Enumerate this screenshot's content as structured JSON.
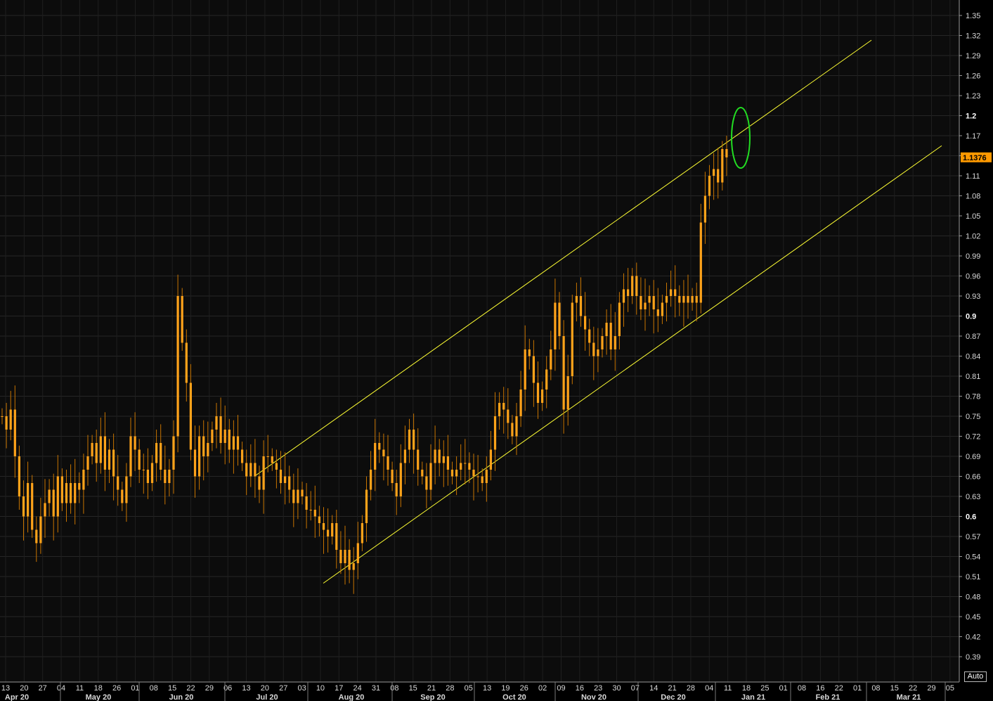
{
  "chart_data": {
    "type": "candlestick",
    "y_ticks": [
      "1.35",
      "1.32",
      "1.29",
      "1.26",
      "1.23",
      "1.2",
      "1.17",
      "1.14",
      "1.11",
      "1.08",
      "1.05",
      "1.02",
      "0.99",
      "0.96",
      "0.93",
      "0.9",
      "0.87",
      "0.84",
      "0.81",
      "0.78",
      "0.75",
      "0.72",
      "0.69",
      "0.66",
      "0.63",
      "0.6",
      "0.57",
      "0.54",
      "0.51",
      "0.48",
      "0.45",
      "0.42",
      "0.39"
    ],
    "y_bold_ticks": [
      "1.2",
      "0.9",
      "0.6"
    ],
    "ylim": [
      0.36,
      1.365
    ],
    "last_value": "1.1376",
    "x_day_ticks": [
      "13",
      "20",
      "27",
      "04",
      "11",
      "18",
      "26",
      "01",
      "08",
      "15",
      "22",
      "29",
      "06",
      "13",
      "20",
      "27",
      "03",
      "10",
      "17",
      "24",
      "31",
      "08",
      "15",
      "21",
      "28",
      "05",
      "13",
      "19",
      "26",
      "02",
      "09",
      "16",
      "23",
      "30",
      "07",
      "14",
      "21",
      "28",
      "04",
      "11",
      "18",
      "25",
      "01",
      "08",
      "16",
      "22",
      "01",
      "08",
      "15",
      "22",
      "29",
      "05"
    ],
    "x_month_labels": [
      "Apr 20",
      "May 20",
      "Jun 20",
      "Jul 20",
      "Aug 20",
      "Sep 20",
      "Oct 20",
      "Nov 20",
      "Dec 20",
      "Jan 21",
      "Feb 21",
      "Mar 21"
    ],
    "date_range": [
      "2020-04-13",
      "2021-03-05"
    ],
    "series": [
      {
        "values": [
          0.75,
          0.73,
          0.76,
          0.69,
          0.63,
          0.6,
          0.65,
          0.58,
          0.56,
          0.6,
          0.62,
          0.64,
          0.6,
          0.66,
          0.62,
          0.65,
          0.62,
          0.65,
          0.64,
          0.67,
          0.69,
          0.71,
          0.68,
          0.72,
          0.67,
          0.7,
          0.66,
          0.64,
          0.62,
          0.66,
          0.72,
          0.7,
          0.67,
          0.67,
          0.65,
          0.68,
          0.71,
          0.67,
          0.65,
          0.67,
          0.72,
          0.93,
          0.86,
          0.8,
          0.7,
          0.66,
          0.72,
          0.69,
          0.71,
          0.73,
          0.75,
          0.71,
          0.73,
          0.7,
          0.72,
          0.7,
          0.68,
          0.66,
          0.68,
          0.66,
          0.64,
          0.69,
          0.69,
          0.68,
          0.67,
          0.65,
          0.66,
          0.64,
          0.62,
          0.64,
          0.63,
          0.61,
          0.61,
          0.6,
          0.59,
          0.58,
          0.57,
          0.59,
          0.55,
          0.53,
          0.55,
          0.52,
          0.53,
          0.56,
          0.59,
          0.64,
          0.67,
          0.71,
          0.7,
          0.69,
          0.67,
          0.65,
          0.63,
          0.68,
          0.7,
          0.73,
          0.7,
          0.67,
          0.66,
          0.64,
          0.68,
          0.7,
          0.68,
          0.69,
          0.67,
          0.66,
          0.67,
          0.68,
          0.68,
          0.67,
          0.66,
          0.66,
          0.65,
          0.67,
          0.7,
          0.75,
          0.77,
          0.76,
          0.74,
          0.72,
          0.75,
          0.79,
          0.85,
          0.84,
          0.8,
          0.77,
          0.79,
          0.82,
          0.85,
          0.92,
          0.87,
          0.76,
          0.81,
          0.92,
          0.93,
          0.9,
          0.88,
          0.86,
          0.84,
          0.85,
          0.87,
          0.89,
          0.85,
          0.87,
          0.92,
          0.94,
          0.93,
          0.96,
          0.93,
          0.91,
          0.92,
          0.93,
          0.91,
          0.9,
          0.92,
          0.93,
          0.94,
          0.93,
          0.92,
          0.93,
          0.92,
          0.93,
          0.92,
          1.04,
          1.08,
          1.11,
          1.12,
          1.1,
          1.15,
          1.1376
        ]
      }
    ]
  }
}
